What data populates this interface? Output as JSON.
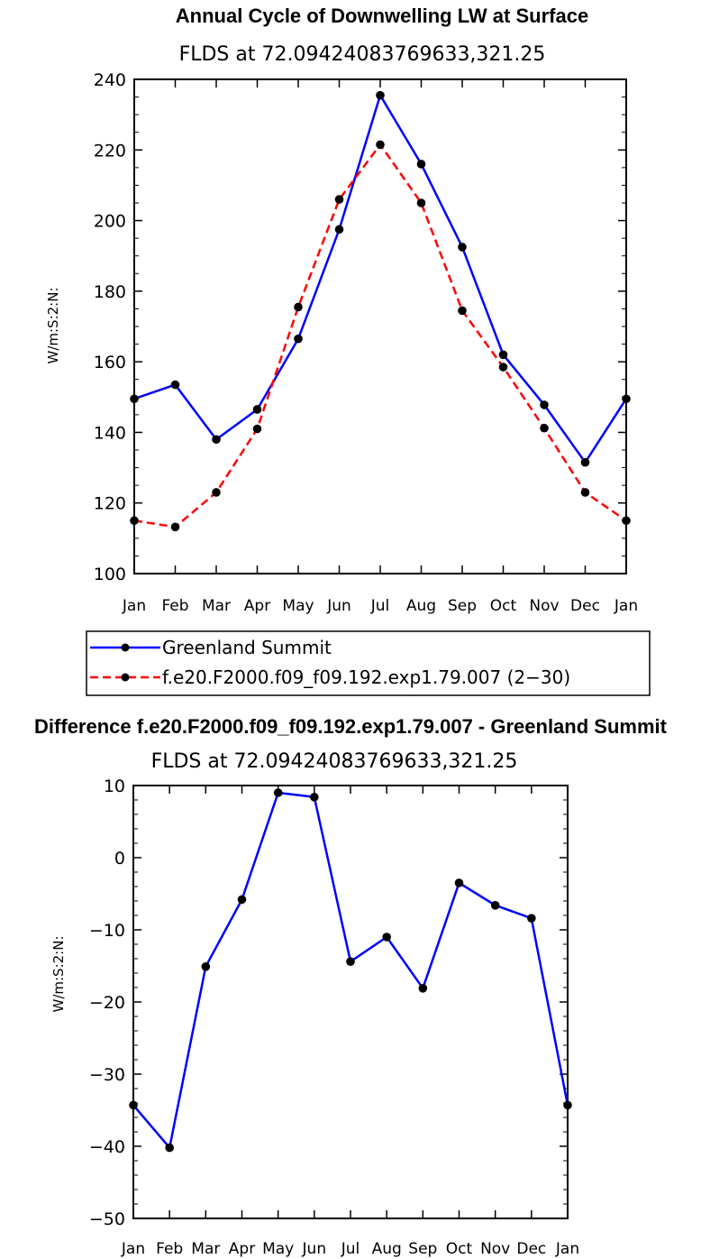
{
  "chart_data": [
    {
      "type": "line",
      "title": "Annual Cycle of Downwelling LW at Surface",
      "subtitle": "FLDS at 72.09424083769633,321.25",
      "xlabel": "",
      "ylabel": "W/m:S:2:N:",
      "categories": [
        "Jan",
        "Feb",
        "Mar",
        "Apr",
        "May",
        "Jun",
        "Jul",
        "Aug",
        "Sep",
        "Oct",
        "Nov",
        "Dec",
        "Jan"
      ],
      "ylim": [
        100,
        240
      ],
      "yticks": [
        100,
        120,
        140,
        160,
        180,
        200,
        220,
        240
      ],
      "grid": false,
      "legend_position": "below",
      "series": [
        {
          "name": "Greenland Summit",
          "color": "#0000ff",
          "dash": "solid",
          "values": [
            149.5,
            153.5,
            138,
            146.5,
            166.5,
            197.5,
            235.5,
            216,
            192.5,
            162,
            147.8,
            131.5,
            149.5
          ]
        },
        {
          "name": "f.e20.F2000.f09_f09.192.exp1.79.007 (2−30)",
          "color": "#ff0000",
          "dash": "dashed",
          "values": [
            115,
            113.2,
            123,
            141,
            175.5,
            206,
            221.5,
            205,
            174.5,
            158.5,
            141.2,
            123,
            115
          ]
        }
      ]
    },
    {
      "type": "line",
      "title": "Difference f.e20.F2000.f09_f09.192.exp1.79.007 - Greenland Summit",
      "subtitle": "FLDS at 72.09424083769633,321.25",
      "xlabel": "",
      "ylabel": "W/m:S:2:N:",
      "categories": [
        "Jan",
        "Feb",
        "Mar",
        "Apr",
        "May",
        "Jun",
        "Jul",
        "Aug",
        "Sep",
        "Oct",
        "Nov",
        "Dec",
        "Jan"
      ],
      "ylim": [
        -50,
        10
      ],
      "yticks": [
        -50,
        -40,
        -30,
        -20,
        -10,
        0,
        10
      ],
      "ytick_labels": [
        "−50",
        "−40",
        "−30",
        "−20",
        "−10",
        "0",
        "10"
      ],
      "grid": false,
      "series": [
        {
          "name": "Difference",
          "color": "#0000ff",
          "dash": "solid",
          "values": [
            -34.3,
            -40.2,
            -15.1,
            -5.8,
            9.0,
            8.4,
            -14.4,
            -11.0,
            -18.1,
            -3.5,
            -6.6,
            -8.4,
            -34.3
          ]
        }
      ]
    }
  ]
}
